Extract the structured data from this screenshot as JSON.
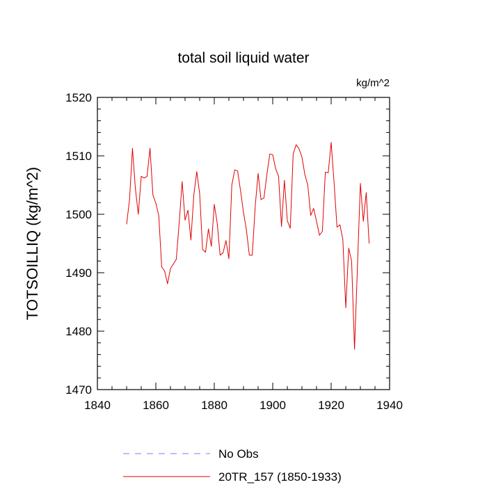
{
  "chart_data": {
    "type": "line",
    "title": "total soil liquid water",
    "units": "kg/m^2",
    "xlabel": "",
    "ylabel": "TOTSOILLIQ  (kg/m^2)",
    "xlim": [
      1840,
      1940
    ],
    "ylim": [
      1470,
      1520
    ],
    "x_ticks": [
      1840,
      1860,
      1880,
      1900,
      1920,
      1940
    ],
    "y_ticks": [
      1470,
      1480,
      1490,
      1500,
      1510,
      1520
    ],
    "x_ticks_text": [
      "1840",
      "1860",
      "1880",
      "1900",
      "1920",
      "1940"
    ],
    "y_ticks_text": [
      "1470",
      "1480",
      "1490",
      "1500",
      "1510",
      "1520"
    ],
    "grid": false,
    "legend_position": "bottom",
    "series": [
      {
        "name": "20TR_157 (1850-1933)",
        "color": "#e00000",
        "x": [
          1850,
          1851,
          1852,
          1853,
          1854,
          1855,
          1856,
          1857,
          1858,
          1859,
          1860,
          1861,
          1862,
          1863,
          1864,
          1865,
          1866,
          1867,
          1868,
          1869,
          1870,
          1871,
          1872,
          1873,
          1874,
          1875,
          1876,
          1877,
          1878,
          1879,
          1880,
          1881,
          1882,
          1883,
          1884,
          1885,
          1886,
          1887,
          1888,
          1889,
          1890,
          1891,
          1892,
          1893,
          1894,
          1895,
          1896,
          1897,
          1898,
          1899,
          1900,
          1901,
          1902,
          1903,
          1904,
          1905,
          1906,
          1907,
          1908,
          1909,
          1910,
          1911,
          1912,
          1913,
          1914,
          1915,
          1916,
          1917,
          1918,
          1919,
          1920,
          1921,
          1922,
          1923,
          1924,
          1925,
          1926,
          1927,
          1928,
          1929,
          1930,
          1931,
          1932,
          1933
        ],
        "values": [
          1498.3,
          1502.5,
          1511.3,
          1504.4,
          1500.0,
          1506.5,
          1506.2,
          1506.5,
          1511.3,
          1503.3,
          1501.9,
          1499.8,
          1491.0,
          1490.3,
          1488.1,
          1490.7,
          1491.5,
          1492.3,
          1498.6,
          1505.6,
          1499.0,
          1500.7,
          1495.6,
          1503.3,
          1507.3,
          1503.5,
          1494.0,
          1493.5,
          1497.5,
          1494.5,
          1501.7,
          1498.5,
          1493.0,
          1493.4,
          1495.5,
          1492.4,
          1505.0,
          1507.6,
          1507.4,
          1504.0,
          1500.3,
          1497.3,
          1493.0,
          1493.0,
          1501.3,
          1507.0,
          1502.5,
          1502.8,
          1506.8,
          1510.3,
          1510.2,
          1507.8,
          1506.5,
          1497.9,
          1505.8,
          1498.9,
          1497.6,
          1510.3,
          1511.9,
          1511.2,
          1509.8,
          1506.8,
          1505.0,
          1499.8,
          1501.0,
          1498.8,
          1496.4,
          1497.1,
          1507.2,
          1507.1,
          1512.3,
          1505.4,
          1497.8,
          1498.2,
          1495.7,
          1484.0,
          1494.2,
          1492.0,
          1476.9,
          1491.1,
          1505.3,
          1498.8,
          1503.7,
          1495.0
        ]
      },
      {
        "name": "No Obs",
        "color": "#7b7bef",
        "x": [],
        "values": []
      }
    ]
  }
}
